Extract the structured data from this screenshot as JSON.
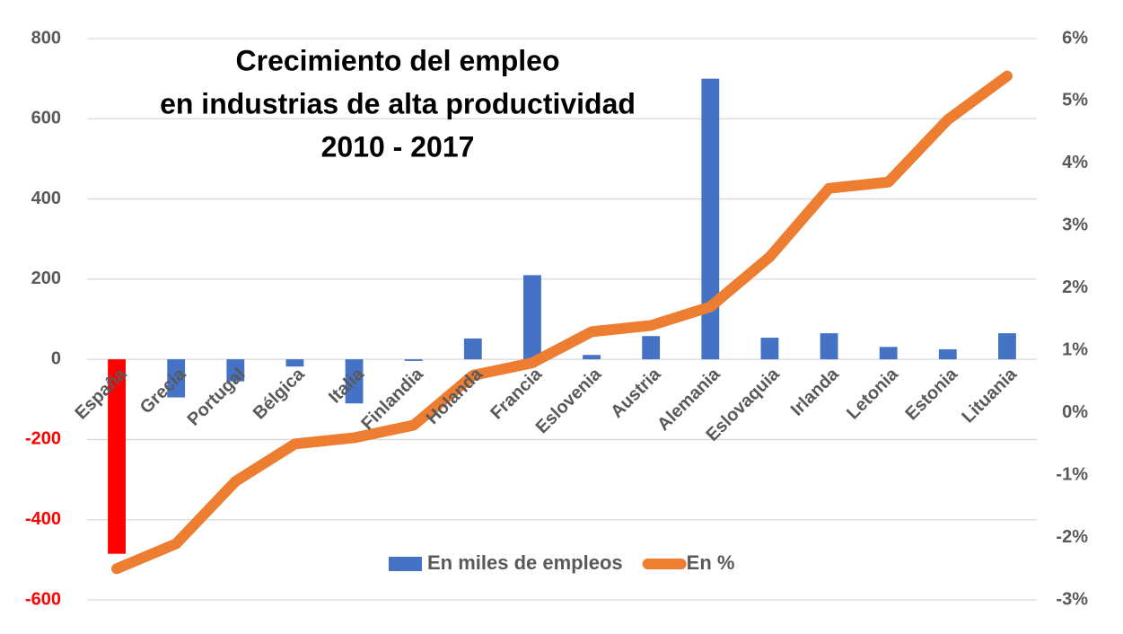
{
  "chart_data": {
    "type": "bar_line",
    "title": [
      "Crecimiento del empleo",
      "en industrias de alta productividad",
      "2010 - 2017"
    ],
    "categories": [
      "España",
      "Grecia",
      "Portugal",
      "Bélgica",
      "Italia",
      "Finlandia",
      "Holanda",
      "Francia",
      "Eslovenia",
      "Austria",
      "Alemania",
      "Eslovaquia",
      "Irlanda",
      "Letonia",
      "Estonia",
      "Lituania"
    ],
    "series": [
      {
        "name": "En miles de empleos",
        "type": "bar",
        "color": "#4472c4",
        "point_colors": [
          "#ff0000",
          "#4472c4",
          "#4472c4",
          "#4472c4",
          "#4472c4",
          "#4472c4",
          "#4472c4",
          "#4472c4",
          "#4472c4",
          "#4472c4",
          "#4472c4",
          "#4472c4",
          "#4472c4",
          "#4472c4",
          "#4472c4",
          "#4472c4"
        ],
        "values": [
          -485,
          -95,
          -55,
          -18,
          -110,
          -4,
          52,
          210,
          11,
          58,
          700,
          54,
          65,
          31,
          25,
          65
        ]
      },
      {
        "name": "En %",
        "type": "line",
        "axis": "y2",
        "color": "#ed7d31",
        "values": [
          -2.5,
          -2.1,
          -1.1,
          -0.5,
          -0.4,
          -0.2,
          0.6,
          0.8,
          1.3,
          1.4,
          1.7,
          2.5,
          3.6,
          3.7,
          4.7,
          5.4
        ]
      }
    ],
    "ylim": [
      -600,
      800
    ],
    "yticks": [
      -600,
      -400,
      -200,
      0,
      200,
      400,
      600,
      800
    ],
    "negative_tick_color": "#ff0000",
    "y2lim": [
      -3,
      6
    ],
    "y2ticks": [
      {
        "value": -3,
        "label": "-3%"
      },
      {
        "value": -2,
        "label": "-2%"
      },
      {
        "value": -1,
        "label": "-1%"
      },
      {
        "value": 0,
        "label": "0%"
      },
      {
        "value": 1,
        "label": "1%"
      },
      {
        "value": 2,
        "label": "2%"
      },
      {
        "value": 3,
        "label": "3%"
      },
      {
        "value": 4,
        "label": "4%"
      },
      {
        "value": 5,
        "label": "5%"
      },
      {
        "value": 6,
        "label": "6%"
      }
    ],
    "grid": true,
    "legend": "bottom"
  }
}
